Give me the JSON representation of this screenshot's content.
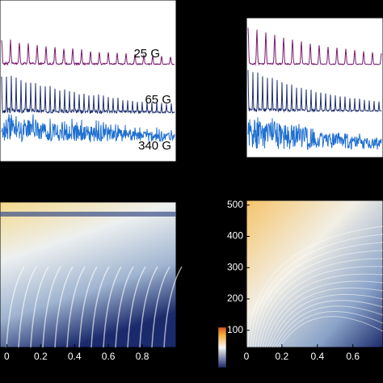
{
  "chart_data": [
    {
      "type": "spectra",
      "annotations": [
        "25 G",
        "65 G",
        "340 G"
      ]
    },
    {
      "type": "spectra"
    },
    {
      "type": "heatmap",
      "xlim": [
        -0.04,
        1.0
      ],
      "xticks": [
        0,
        0.2,
        0.4,
        0.6,
        0.8
      ]
    },
    {
      "type": "heatmap",
      "xlim": [
        0,
        0.77
      ],
      "xticks": [
        0,
        0.2,
        0.4,
        0.6
      ],
      "ylim": [
        45,
        515
      ],
      "yticks": [
        100,
        200,
        300,
        400,
        500
      ],
      "colorbar": true
    }
  ]
}
